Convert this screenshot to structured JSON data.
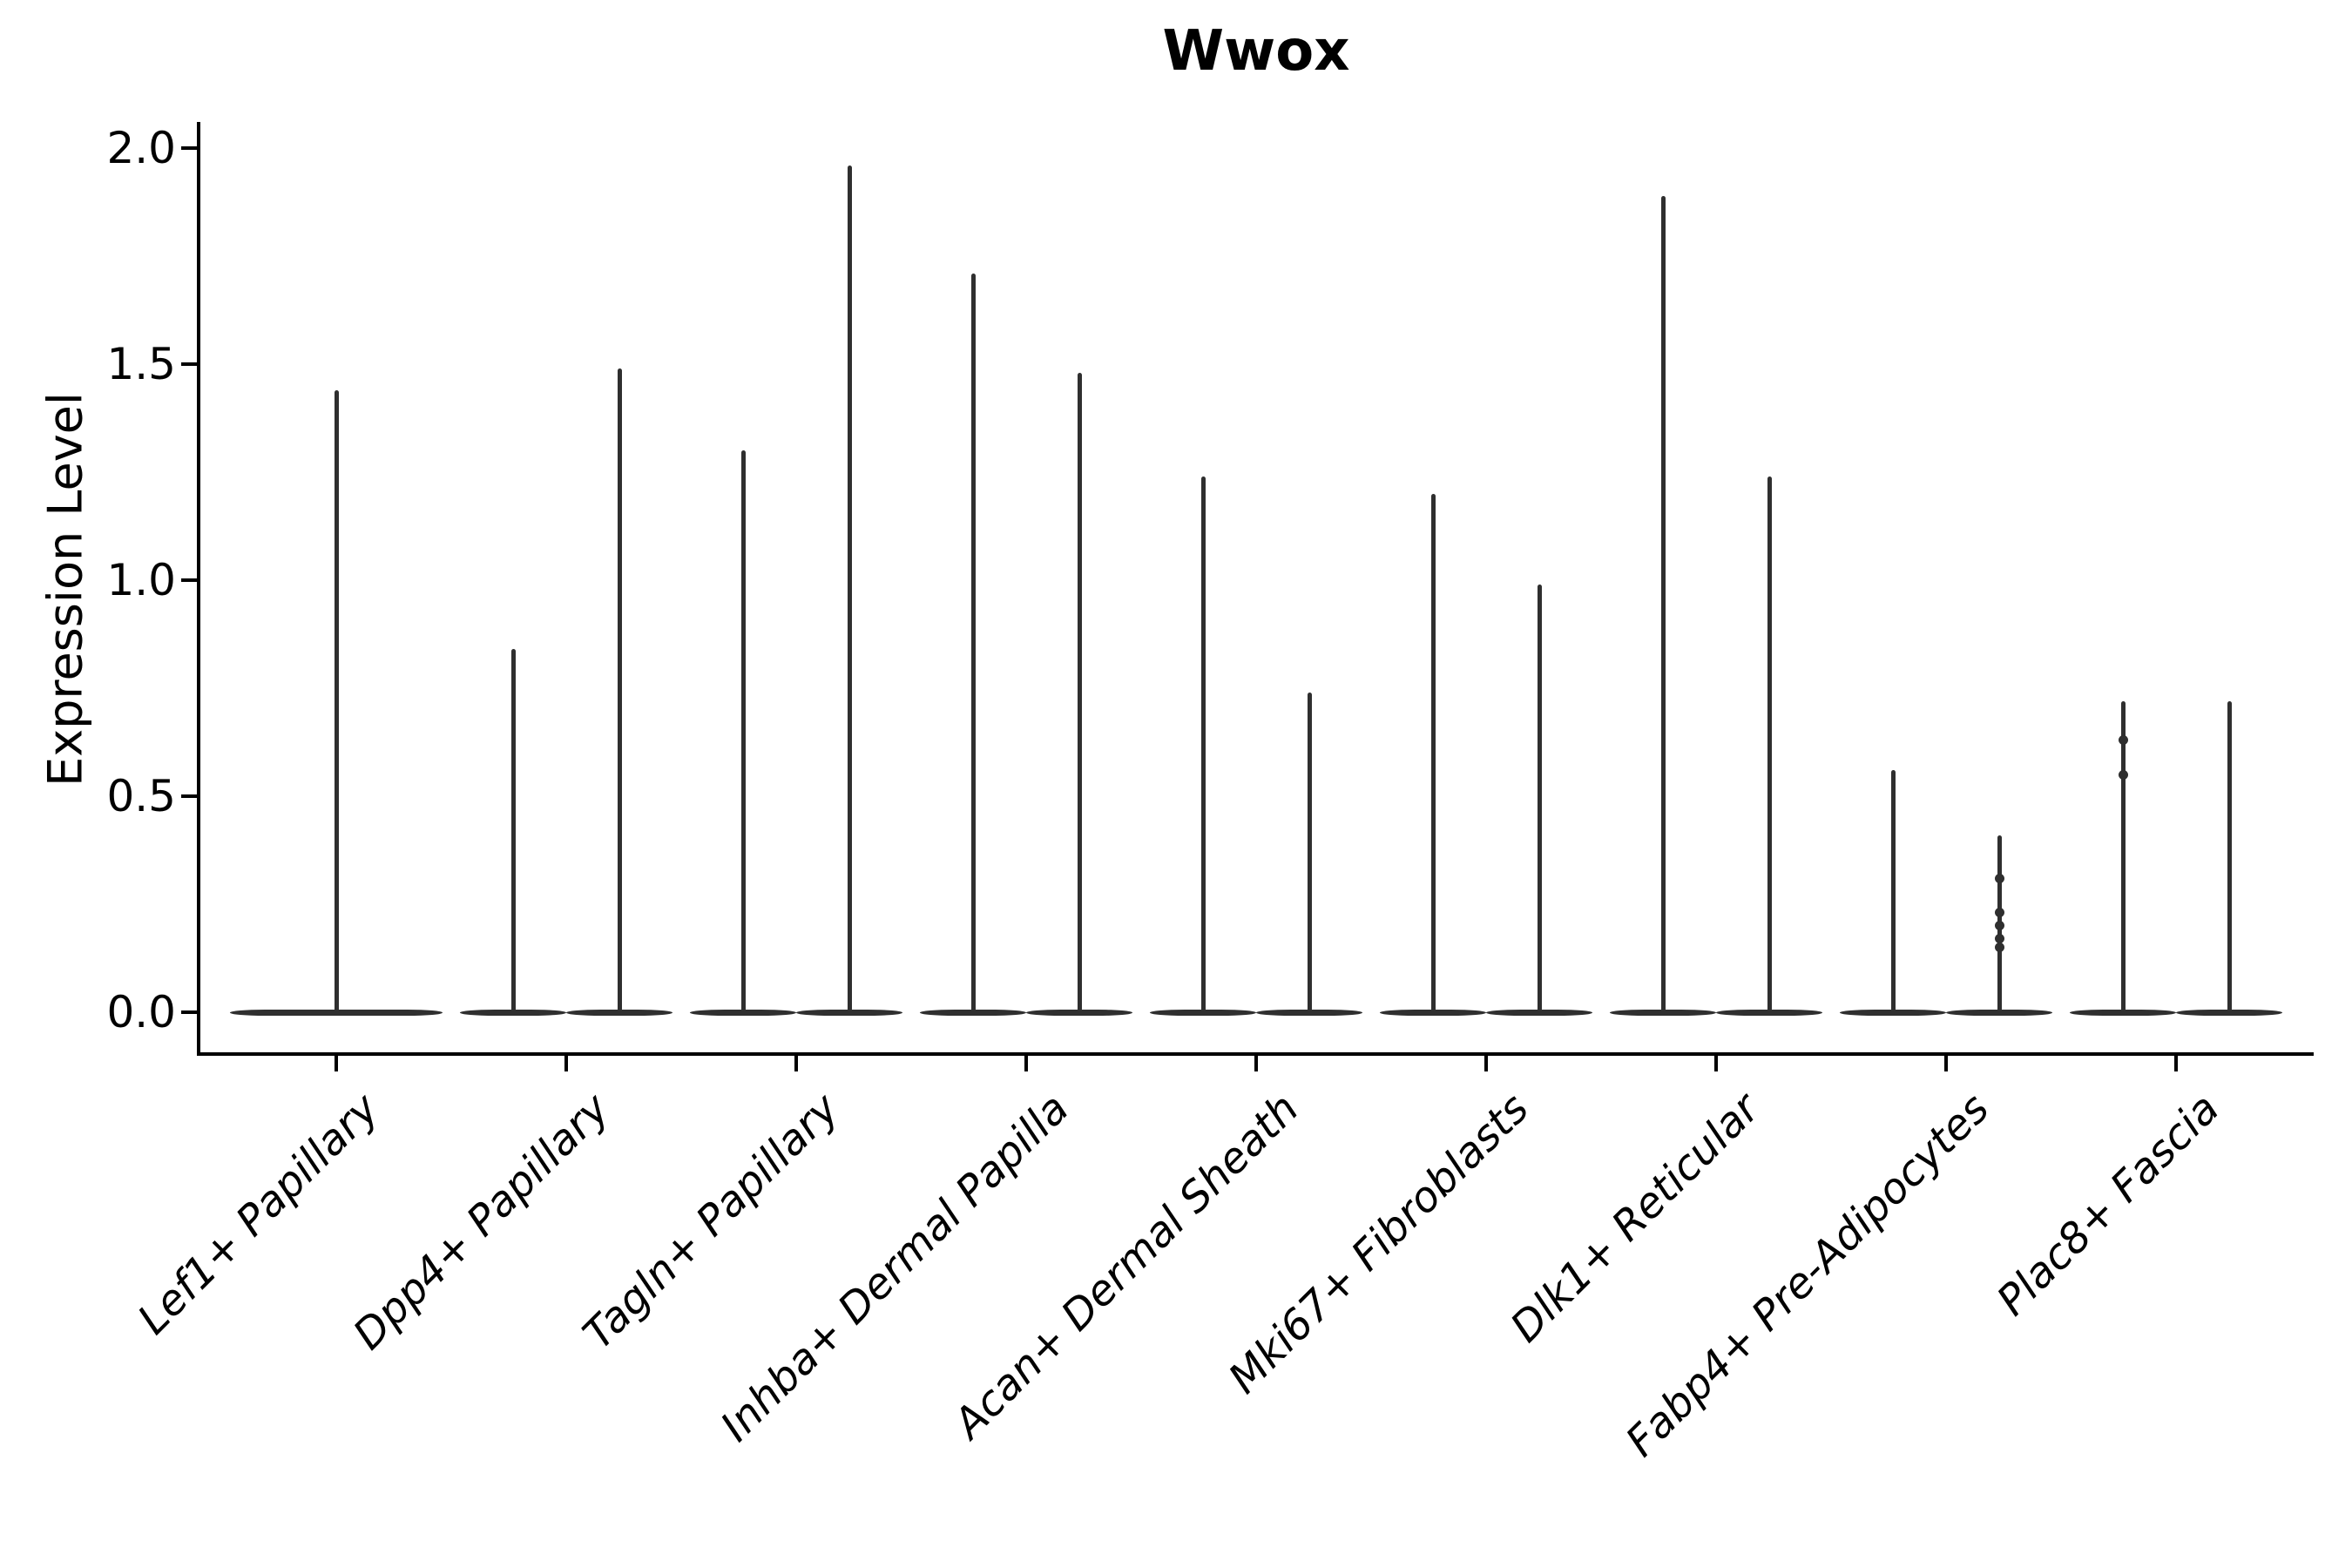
{
  "title": "Wwox",
  "ylabel": "Expression Level",
  "colors": {
    "violin": "#2f2f2f",
    "axes": "#000000",
    "background": "#ffffff"
  },
  "chart_data": {
    "type": "violin",
    "title": "Wwox",
    "xlabel": "",
    "ylabel": "Expression Level",
    "ylim": [
      0.0,
      2.0
    ],
    "y_ticks": [
      0.0,
      0.5,
      1.0,
      1.5,
      2.0
    ],
    "y_tick_labels": [
      "0.0",
      "0.5",
      "1.0",
      "1.5",
      "2.0"
    ],
    "grid": false,
    "legend": "none",
    "categories": [
      "Lef1+ Papillary",
      "Dpp4+ Papillary",
      "Tagln+ Papillary",
      "Inhba+ Dermal Papilla",
      "Acan+ Dermal Sheath",
      "Mki67+ Fibroblasts",
      "Dlk1+ Reticular",
      "Fabp4+ Pre-Adipocytes",
      "Plac8+ Fascia"
    ],
    "description": "Violin plot of Wwox expression; most cells at 0 giving flat bases with thin spikes up to the max expression per group. All violins share one dark-gray color. Category 1 has a single full-width violin; categories 2-9 each have two dodged violins.",
    "violins": [
      {
        "category": "Lef1+ Papillary",
        "slot": "full",
        "max": 1.44,
        "points": []
      },
      {
        "category": "Dpp4+ Papillary",
        "slot": "left",
        "max": 0.84,
        "points": []
      },
      {
        "category": "Dpp4+ Papillary",
        "slot": "right",
        "max": 1.49,
        "points": []
      },
      {
        "category": "Tagln+ Papillary",
        "slot": "left",
        "max": 1.3,
        "points": []
      },
      {
        "category": "Tagln+ Papillary",
        "slot": "right",
        "max": 1.96,
        "points": []
      },
      {
        "category": "Inhba+ Dermal Papilla",
        "slot": "left",
        "max": 1.71,
        "points": []
      },
      {
        "category": "Inhba+ Dermal Papilla",
        "slot": "right",
        "max": 1.48,
        "points": []
      },
      {
        "category": "Acan+ Dermal Sheath",
        "slot": "left",
        "max": 1.24,
        "points": []
      },
      {
        "category": "Acan+ Dermal Sheath",
        "slot": "right",
        "max": 0.74,
        "points": []
      },
      {
        "category": "Mki67+ Fibroblasts",
        "slot": "left",
        "max": 1.2,
        "points": []
      },
      {
        "category": "Mki67+ Fibroblasts",
        "slot": "right",
        "max": 0.99,
        "points": []
      },
      {
        "category": "Dlk1+ Reticular",
        "slot": "left",
        "max": 1.89,
        "points": []
      },
      {
        "category": "Dlk1+ Reticular",
        "slot": "right",
        "max": 1.24,
        "points": []
      },
      {
        "category": "Fabp4+ Pre-Adipocytes",
        "slot": "left",
        "max": 0.56,
        "points": []
      },
      {
        "category": "Fabp4+ Pre-Adipocytes",
        "slot": "right",
        "max": 0.41,
        "points": [
          0.31,
          0.23,
          0.2,
          0.17,
          0.15
        ]
      },
      {
        "category": "Plac8+ Fascia",
        "slot": "left",
        "max": 0.72,
        "points": [
          0.63,
          0.55
        ]
      },
      {
        "category": "Plac8+ Fascia",
        "slot": "right",
        "max": 0.72,
        "points": []
      }
    ]
  }
}
